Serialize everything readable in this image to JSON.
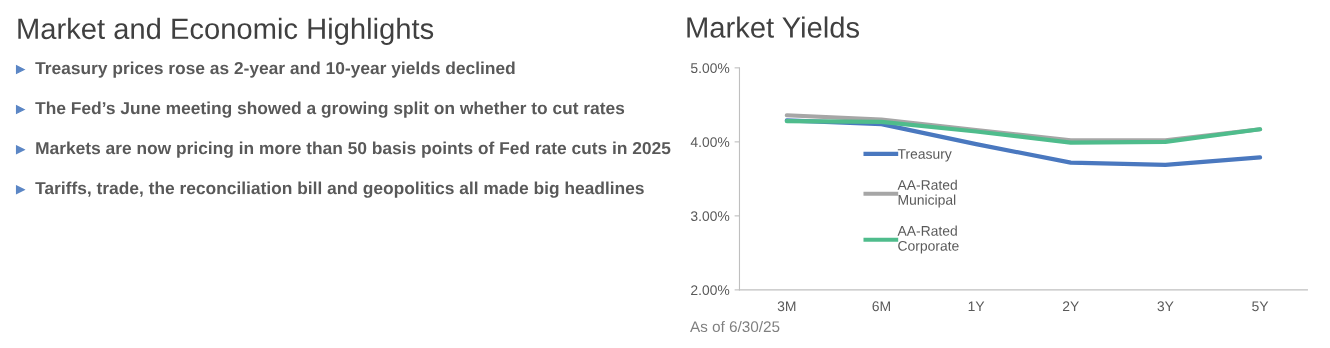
{
  "chart_data": [
    {
      "type": "other",
      "title": "Market and Economic Highlights",
      "annotations": [
        "Treasury prices rose as 2-year and 10-year yields declined",
        "The Fed’s June meeting showed a growing split on whether to cut rates",
        "Markets are now pricing in more than 50 basis points of Fed rate cuts in 2025",
        "Tariffs, trade, the reconciliation bill and geopolitics all made big headlines"
      ]
    },
    {
      "type": "line",
      "title": "Market Yields",
      "categories": [
        "3M",
        "6M",
        "1Y",
        "2Y",
        "3Y",
        "5Y"
      ],
      "series": [
        {
          "name": "Treasury",
          "color": "#4a78bf",
          "values": [
            4.29,
            4.24,
            3.97,
            3.72,
            3.69,
            3.79
          ]
        },
        {
          "name": "AA-Rated\nMunicipal",
          "color": "#a6a6a6",
          "values": [
            4.36,
            4.3,
            4.16,
            4.02,
            4.02,
            4.17
          ]
        },
        {
          "name": "AA-Rated\nCorporate",
          "color": "#4fbc8c",
          "values": [
            4.28,
            4.27,
            4.14,
            3.99,
            4.0,
            4.17
          ]
        }
      ],
      "ylim": [
        2,
        5
      ],
      "yticks": [
        {
          "value": 2,
          "label": "2.00%"
        },
        {
          "value": 3,
          "label": "3.00%"
        },
        {
          "value": 4,
          "label": "4.00%"
        },
        {
          "value": 5,
          "label": "5.00%"
        }
      ],
      "grid": false,
      "legend": "left",
      "marker": "none",
      "line_style": "solid",
      "annotations": [
        "As of 6/30/25"
      ]
    }
  ]
}
